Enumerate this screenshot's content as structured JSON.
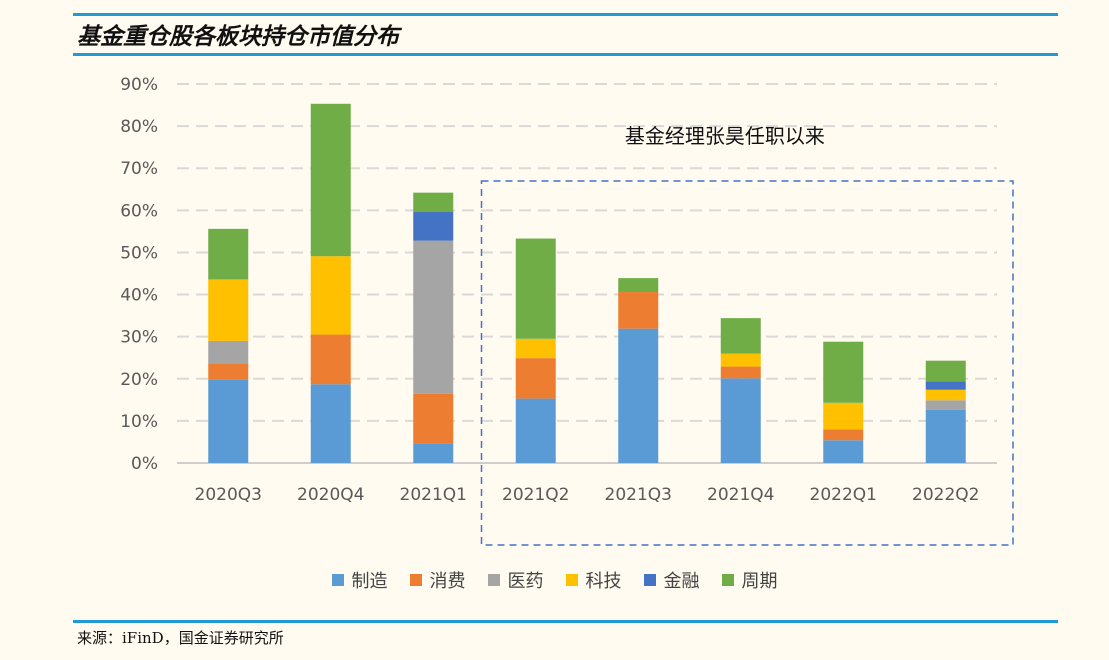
{
  "header": {
    "title": "基金重仓股各板块持仓市值分布"
  },
  "footer": {
    "source": "来源：iFinD，国金证券研究所"
  },
  "chart_data": {
    "type": "bar",
    "stacked": true,
    "categories": [
      "2020Q3",
      "2020Q4",
      "2021Q1",
      "2021Q2",
      "2021Q3",
      "2021Q4",
      "2022Q1",
      "2022Q2"
    ],
    "series": [
      {
        "name": "制造",
        "color": "#5b9bd5",
        "values": [
          19.8,
          18.7,
          4.6,
          15.3,
          31.9,
          20.1,
          5.4,
          12.6
        ]
      },
      {
        "name": "消费",
        "color": "#ed7d31",
        "values": [
          3.9,
          11.8,
          11.8,
          9.6,
          8.7,
          2.8,
          2.6,
          0
        ]
      },
      {
        "name": "医药",
        "color": "#a5a5a5",
        "values": [
          5.3,
          0,
          36.4,
          0,
          0,
          0,
          0,
          2.3
        ]
      },
      {
        "name": "科技",
        "color": "#ffc000",
        "values": [
          14.6,
          18.6,
          0,
          4.6,
          0,
          3.1,
          6.3,
          2.5
        ]
      },
      {
        "name": "金融",
        "color": "#4472c4",
        "values": [
          0,
          0,
          6.8,
          0,
          0,
          0,
          0,
          2.0
        ]
      },
      {
        "name": "周期",
        "color": "#70ad47",
        "values": [
          12.0,
          36.2,
          4.6,
          23.8,
          3.3,
          8.4,
          14.5,
          4.9
        ]
      }
    ],
    "ylim": [
      0,
      90
    ],
    "yticks": [
      "0%",
      "10%",
      "20%",
      "30%",
      "40%",
      "50%",
      "60%",
      "70%",
      "80%",
      "90%"
    ],
    "grid": true,
    "legend_position": "bottom",
    "annotation": {
      "text": "基金经理张昊任职以来",
      "from_category": "2021Q2",
      "to_category": "2022Q2"
    }
  }
}
